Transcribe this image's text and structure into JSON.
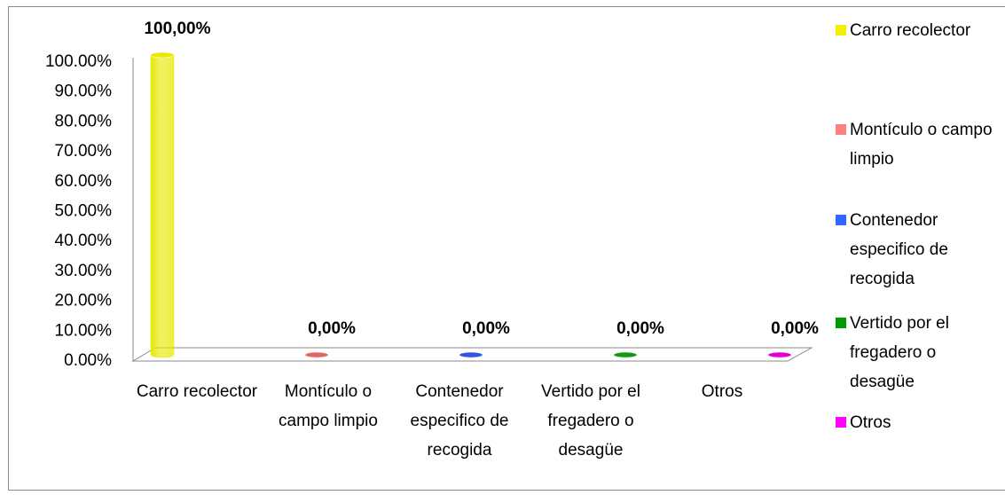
{
  "chart_data": {
    "type": "bar3d",
    "categories": [
      "Carro recolector",
      "Montículo o campo limpio",
      "Contenedor especifico de recogida",
      "Vertido por el fregadero o desagüe",
      "Otros"
    ],
    "values": [
      100,
      0,
      0,
      0,
      0
    ],
    "value_labels": [
      "100,00%",
      "0,00%",
      "0,00%",
      "0,00%",
      "0,00%"
    ],
    "colors": [
      "#e8e800",
      "#e06666",
      "#3355dd",
      "#119911",
      "#dd00dd"
    ],
    "legend_colors": [
      "#f2f200",
      "#ff8080",
      "#3366ff",
      "#009900",
      "#ff00ff"
    ],
    "ylim": [
      0,
      100
    ],
    "yticks": [
      {
        "value": 0,
        "label": "0.00%"
      },
      {
        "value": 10,
        "label": "10.00%"
      },
      {
        "value": 20,
        "label": "20.00%"
      },
      {
        "value": 30,
        "label": "30.00%"
      },
      {
        "value": 40,
        "label": "40.00%"
      },
      {
        "value": 50,
        "label": "50.00%"
      },
      {
        "value": 60,
        "label": "60.00%"
      },
      {
        "value": 70,
        "label": "70.00%"
      },
      {
        "value": 80,
        "label": "80.00%"
      },
      {
        "value": 90,
        "label": "90.00%"
      },
      {
        "value": 100,
        "label": "100.00%"
      }
    ],
    "legend": "right"
  }
}
